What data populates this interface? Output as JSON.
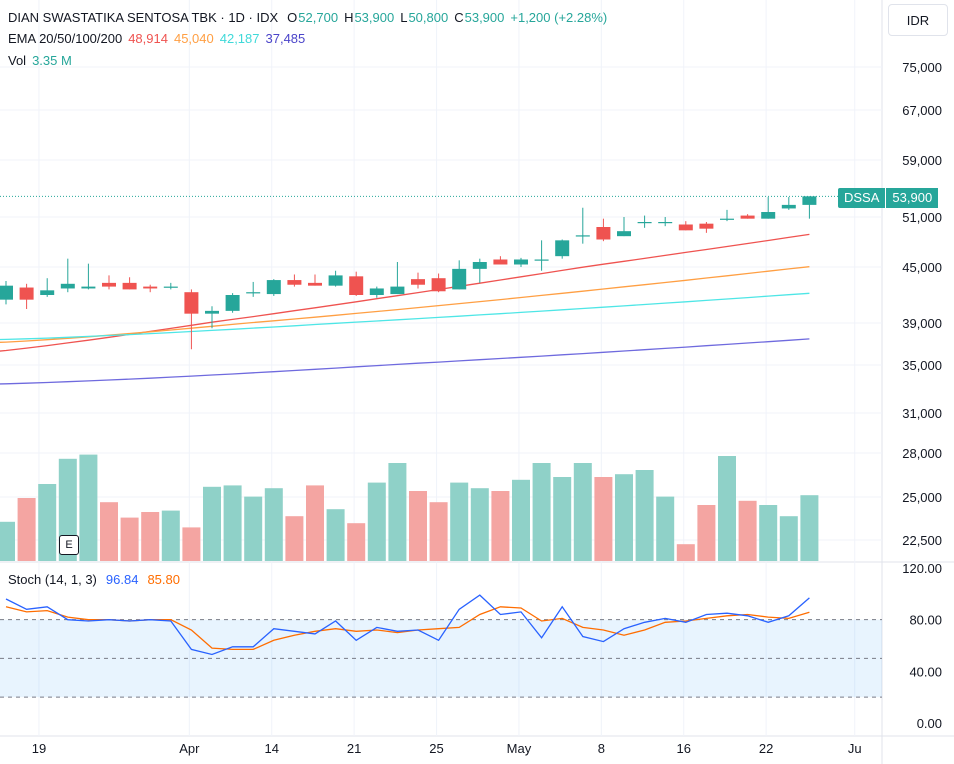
{
  "header": {
    "title": "DIAN SWASTATIKA SENTOSA TBK · 1D · IDX",
    "ohlc": {
      "o_label": "O",
      "o": "52,700",
      "h_label": "H",
      "h": "53,900",
      "l_label": "L",
      "l": "50,800",
      "c_label": "C",
      "c": "53,900",
      "change": "+1,200 (+2.28%)"
    },
    "ema_label": "EMA 20/50/100/200",
    "ema_values": [
      "48,914",
      "45,040",
      "42,187",
      "37,485"
    ],
    "vol_label": "Vol",
    "vol_value": "3.35 M"
  },
  "currency_button": "IDR",
  "price_tag": {
    "symbol": "DSSA",
    "price": "53,900"
  },
  "earnings_badge": "E",
  "stoch": {
    "label": "Stoch (14, 1, 3)",
    "k_value": "96.84",
    "d_value": "85.80"
  },
  "colors": {
    "up": "#26a69a",
    "down": "#ef5350",
    "vol_up": "#8fd1c8",
    "vol_down": "#f4a5a2",
    "ema20": "#ef5350",
    "ema50": "#ff9f43",
    "ema100": "#4ee6e6",
    "ema200": "#6f6ade",
    "stoch_k": "#2962ff",
    "stoch_d": "#ff6d00",
    "axis_text": "#131722"
  },
  "chart_data": {
    "type": "candlestick",
    "price_axis_ticks": [
      "75,000",
      "67,000",
      "59,000",
      "51,000",
      "45,000",
      "39,000",
      "35,000",
      "31,000",
      "28,000",
      "25,000",
      "22,500"
    ],
    "price_axis_values": [
      75000,
      67000,
      59000,
      51000,
      45000,
      39000,
      35000,
      31000,
      28000,
      25000,
      22500
    ],
    "stoch_axis_ticks": [
      "120.00",
      "80.00",
      "40.00",
      "0.00"
    ],
    "stoch_axis_values": [
      120,
      80,
      40,
      0
    ],
    "stoch_bands": [
      80,
      50,
      20
    ],
    "x_axis_labels": [
      "19",
      "Apr",
      "14",
      "21",
      "25",
      "May",
      "8",
      "16",
      "22",
      "Ju"
    ],
    "x_axis_label_bars": [
      1.6,
      8.9,
      12.9,
      16.9,
      20.9,
      24.9,
      28.9,
      32.9,
      36.9,
      41.2
    ],
    "bars": [
      {
        "o": 41500,
        "h": 43500,
        "l": 41000,
        "c": 43000
      },
      {
        "o": 42800,
        "h": 43200,
        "l": 40500,
        "c": 41500
      },
      {
        "o": 42000,
        "h": 43800,
        "l": 41800,
        "c": 42500
      },
      {
        "o": 42700,
        "h": 46000,
        "l": 42300,
        "c": 43200
      },
      {
        "o": 42700,
        "h": 45400,
        "l": 42600,
        "c": 42900
      },
      {
        "o": 43300,
        "h": 44100,
        "l": 42600,
        "c": 42900
      },
      {
        "o": 43300,
        "h": 43900,
        "l": 42600,
        "c": 42600
      },
      {
        "o": 42900,
        "h": 43100,
        "l": 42300,
        "c": 42700
      },
      {
        "o": 42800,
        "h": 43300,
        "l": 42600,
        "c": 42900
      },
      {
        "o": 42300,
        "h": 42600,
        "l": 36500,
        "c": 40000
      },
      {
        "o": 40000,
        "h": 40800,
        "l": 38500,
        "c": 40300
      },
      {
        "o": 40300,
        "h": 42200,
        "l": 40100,
        "c": 42000
      },
      {
        "o": 42200,
        "h": 43400,
        "l": 41800,
        "c": 42300
      },
      {
        "o": 42100,
        "h": 43700,
        "l": 41900,
        "c": 43600
      },
      {
        "o": 43600,
        "h": 44200,
        "l": 42900,
        "c": 43100
      },
      {
        "o": 43300,
        "h": 44200,
        "l": 43000,
        "c": 43000
      },
      {
        "o": 43000,
        "h": 44600,
        "l": 42900,
        "c": 44100
      },
      {
        "o": 44000,
        "h": 44500,
        "l": 41900,
        "c": 42000
      },
      {
        "o": 42000,
        "h": 42900,
        "l": 41700,
        "c": 42700
      },
      {
        "o": 42100,
        "h": 45600,
        "l": 42100,
        "c": 42900
      },
      {
        "o": 43700,
        "h": 44400,
        "l": 42700,
        "c": 43100
      },
      {
        "o": 43800,
        "h": 44300,
        "l": 42300,
        "c": 42400
      },
      {
        "o": 42600,
        "h": 45800,
        "l": 42600,
        "c": 44800
      },
      {
        "o": 44800,
        "h": 46000,
        "l": 43300,
        "c": 45600
      },
      {
        "o": 45900,
        "h": 46300,
        "l": 45300,
        "c": 45300
      },
      {
        "o": 45300,
        "h": 46100,
        "l": 45000,
        "c": 45900
      },
      {
        "o": 45800,
        "h": 48200,
        "l": 44600,
        "c": 45900
      },
      {
        "o": 46300,
        "h": 48300,
        "l": 46000,
        "c": 48200
      },
      {
        "o": 48700,
        "h": 52300,
        "l": 47800,
        "c": 48800
      },
      {
        "o": 49800,
        "h": 50800,
        "l": 48100,
        "c": 48300
      },
      {
        "o": 48700,
        "h": 51000,
        "l": 48700,
        "c": 49300
      },
      {
        "o": 50300,
        "h": 51200,
        "l": 49700,
        "c": 50400
      },
      {
        "o": 50400,
        "h": 51000,
        "l": 49900,
        "c": 50400
      },
      {
        "o": 50100,
        "h": 50500,
        "l": 49400,
        "c": 49400
      },
      {
        "o": 50200,
        "h": 50400,
        "l": 49100,
        "c": 49600
      },
      {
        "o": 50800,
        "h": 52000,
        "l": 50500,
        "c": 50800
      },
      {
        "o": 51200,
        "h": 51400,
        "l": 50800,
        "c": 50800
      },
      {
        "o": 50800,
        "h": 53800,
        "l": 50800,
        "c": 51700
      },
      {
        "o": 52200,
        "h": 53800,
        "l": 52000,
        "c": 52700
      },
      {
        "o": 52700,
        "h": 53900,
        "l": 50800,
        "c": 53900
      }
    ],
    "volume_relative": [
      0.28,
      0.45,
      0.55,
      0.73,
      0.76,
      0.42,
      0.31,
      0.35,
      0.36,
      0.24,
      0.53,
      0.54,
      0.46,
      0.52,
      0.32,
      0.54,
      0.37,
      0.27,
      0.56,
      0.7,
      0.5,
      0.42,
      0.56,
      0.52,
      0.5,
      0.58,
      0.7,
      0.6,
      0.7,
      0.6,
      0.62,
      0.65,
      0.46,
      0.12,
      0.4,
      0.75,
      0.43,
      0.4,
      0.32,
      0.47
    ],
    "ema_series": [
      {
        "name": "EMA 20",
        "start": 36200,
        "end": 48914
      },
      {
        "name": "EMA 50",
        "start": 37100,
        "end": 45040
      },
      {
        "name": "EMA 100",
        "start": 37400,
        "end": 42187
      },
      {
        "name": "EMA 200",
        "start": 33400,
        "end": 37485
      }
    ],
    "stoch_k": [
      96,
      88,
      90,
      80,
      79,
      80,
      79,
      80,
      79,
      57,
      53,
      59,
      59,
      73,
      71,
      69,
      79,
      64,
      74,
      71,
      72,
      64,
      88,
      99,
      84,
      86,
      66,
      90,
      67,
      63,
      73,
      78,
      81,
      78,
      84,
      85,
      83,
      78,
      83,
      96.84
    ],
    "stoch_d": [
      90,
      86,
      87,
      82,
      80,
      80,
      79,
      80,
      80,
      72,
      58,
      57,
      57,
      64,
      68,
      71,
      73,
      71,
      72,
      70,
      72,
      73,
      74,
      84,
      90,
      89,
      79,
      81,
      74,
      72,
      68,
      72,
      78,
      79,
      81,
      83,
      84,
      82,
      81,
      85.8
    ]
  }
}
